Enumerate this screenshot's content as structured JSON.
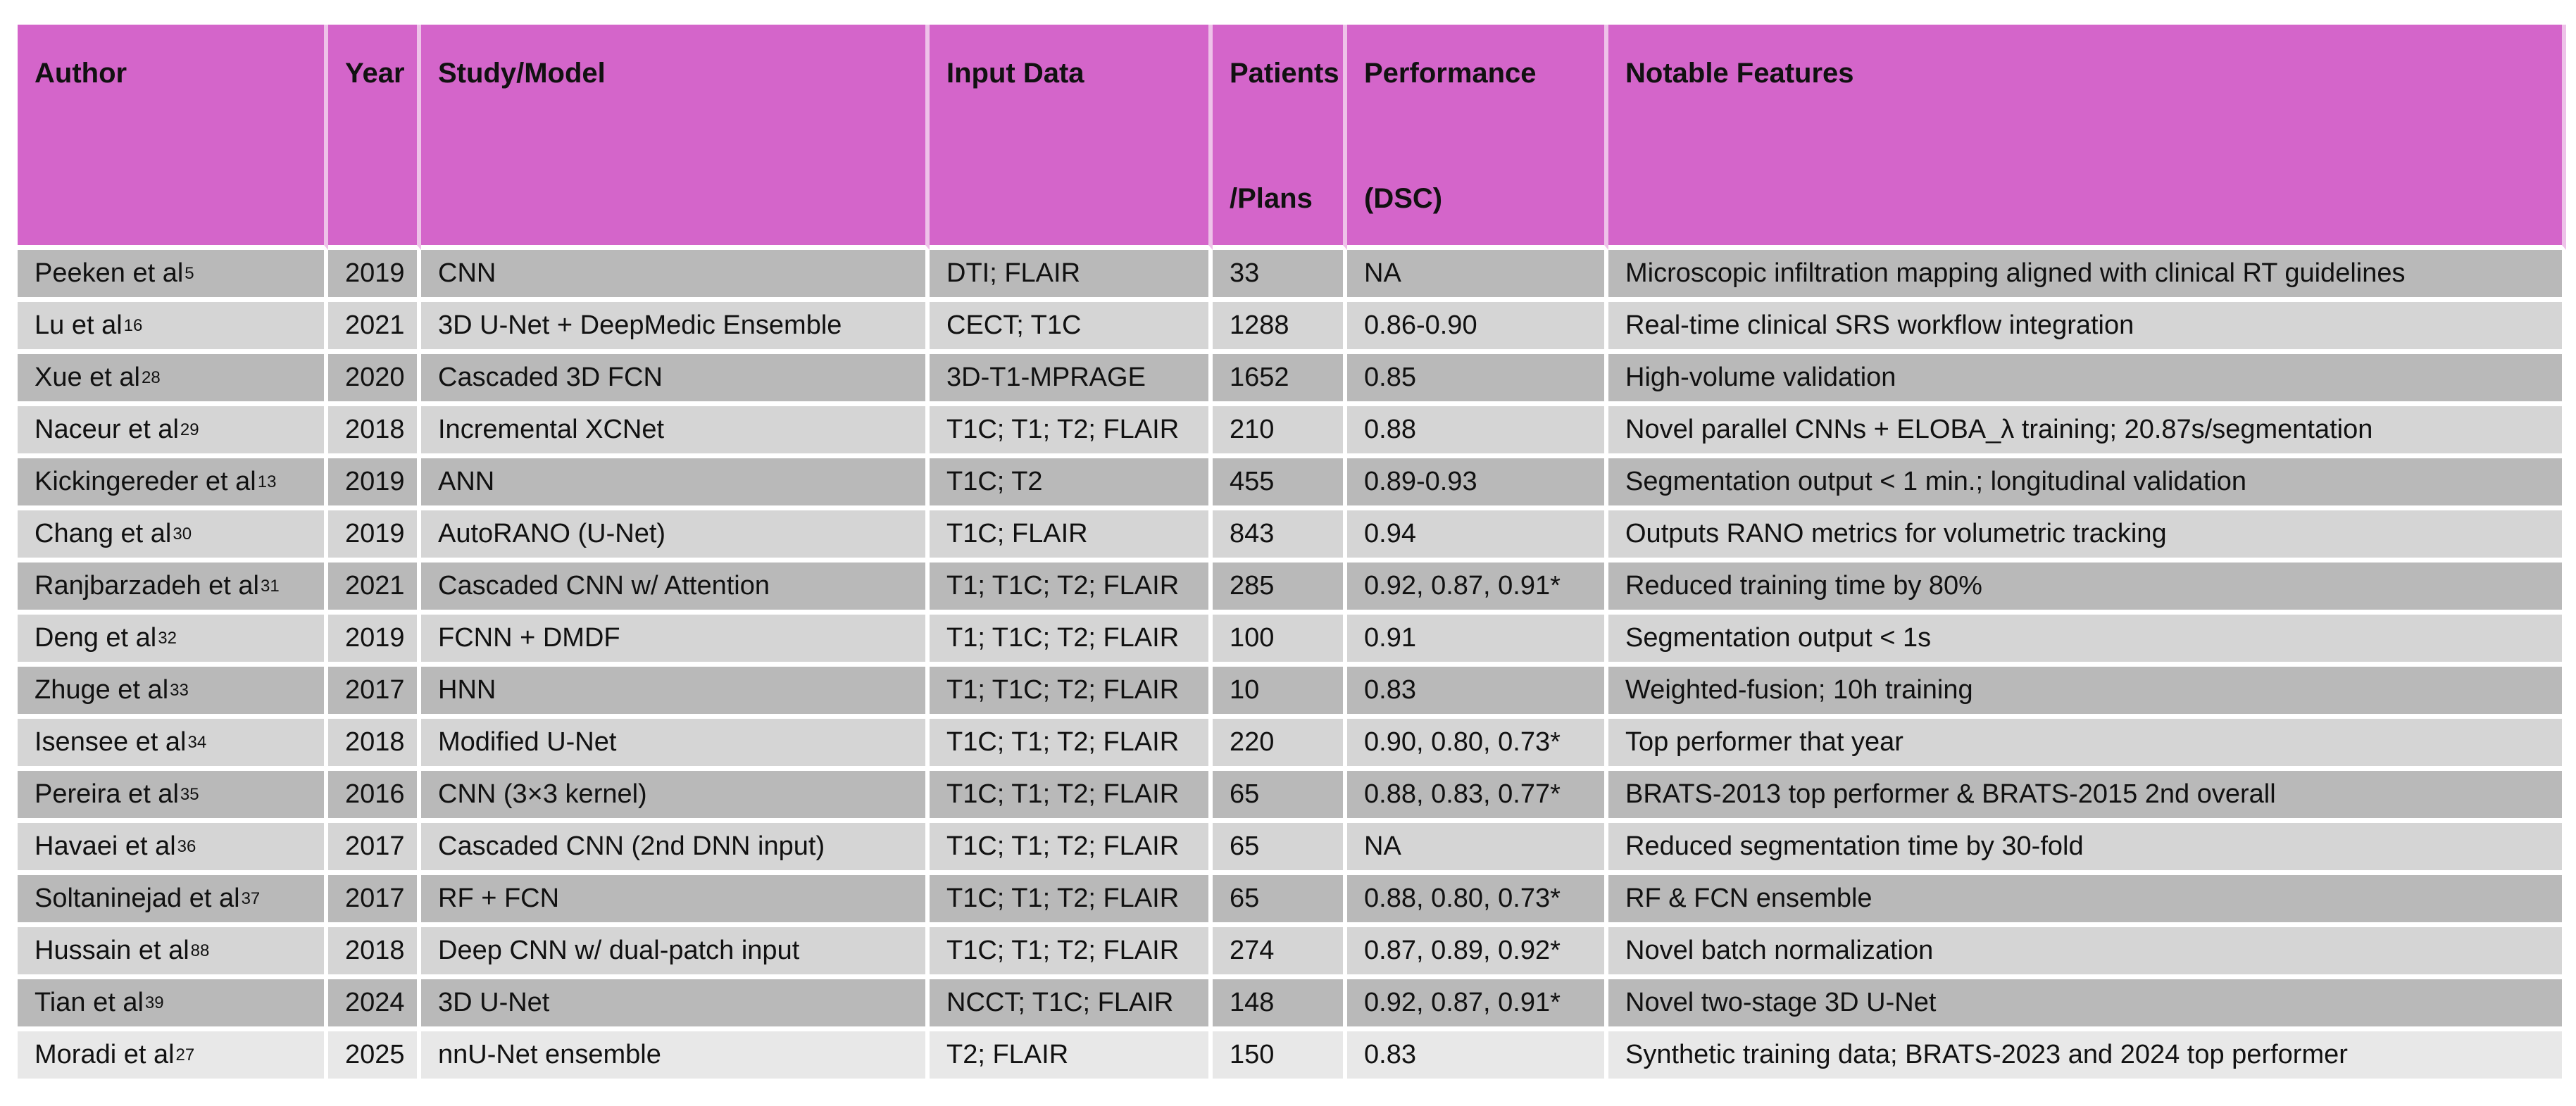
{
  "colors": {
    "header_bg": "#d465ca",
    "row_dark": "#b9b9b9",
    "row_light": "#d5d5d5",
    "row_lightest": "#e8e8e8",
    "grid_line": "#ffffff",
    "header_separator": "#eec2e9",
    "text": "#111111"
  },
  "header": {
    "author": "Author",
    "year": "Year",
    "study": "Study/Model",
    "input": "Input Data",
    "patients_line1": "Patients",
    "patients_line2": "/Plans",
    "performance_line1": "Performance",
    "performance_line2": "(DSC)",
    "features": "Notable Features"
  },
  "rows": [
    {
      "author": "Peeken et al",
      "ref": "5",
      "year": "2019",
      "study": "CNN",
      "input": "DTI; FLAIR",
      "patients": "33",
      "performance": "NA",
      "features": "Microscopic infiltration mapping aligned with clinical RT guidelines"
    },
    {
      "author": "Lu et al",
      "ref": "16",
      "year": "2021",
      "study": "3D U-Net + DeepMedic Ensemble",
      "input": "CECT; T1C",
      "patients": "1288",
      "performance": "0.86-0.90",
      "features": "Real-time clinical SRS workflow integration"
    },
    {
      "author": "Xue et al",
      "ref": "28",
      "year": "2020",
      "study": "Cascaded 3D FCN",
      "input": "3D-T1-MPRAGE",
      "patients": "1652",
      "performance": "0.85",
      "features": "High-volume validation"
    },
    {
      "author": "Naceur et al",
      "ref": "29",
      "year": "2018",
      "study": "Incremental XCNet",
      "input": "T1C; T1; T2; FLAIR",
      "patients": "210",
      "performance": "0.88",
      "features": "Novel parallel CNNs + ELOBA_λ training; 20.87s/segmentation"
    },
    {
      "author": "Kickingereder et al",
      "ref": "13",
      "year": "2019",
      "study": "ANN",
      "input": "T1C; T2",
      "patients": "455",
      "performance": "0.89-0.93",
      "features": "Segmentation output < 1 min.; longitudinal validation"
    },
    {
      "author": "Chang et al",
      "ref": "30",
      "year": "2019",
      "study": "AutoRANO (U-Net)",
      "input": "T1C; FLAIR",
      "patients": "843",
      "performance": "0.94",
      "features": "Outputs RANO metrics for volumetric tracking"
    },
    {
      "author": "Ranjbarzadeh et al",
      "ref": "31",
      "year": "2021",
      "study": "Cascaded CNN w/ Attention",
      "input": "T1; T1C; T2; FLAIR",
      "patients": "285",
      "performance": "0.92, 0.87, 0.91*",
      "features": "Reduced training time by 80%"
    },
    {
      "author": "Deng et al",
      "ref": "32",
      "year": "2019",
      "study": "FCNN + DMDF",
      "input": "T1; T1C; T2; FLAIR",
      "patients": "100",
      "performance": "0.91",
      "features": "Segmentation output < 1s"
    },
    {
      "author": "Zhuge et al",
      "ref": "33",
      "year": "2017",
      "study": "HNN",
      "input": "T1; T1C; T2; FLAIR",
      "patients": "10",
      "performance": "0.83",
      "features": "Weighted-fusion; 10h training"
    },
    {
      "author": "Isensee et al",
      "ref": "34",
      "year": "2018",
      "study": "Modified U-Net",
      "input": "T1C; T1; T2; FLAIR",
      "patients": "220",
      "performance": "0.90, 0.80, 0.73*",
      "features": "Top performer that year"
    },
    {
      "author": "Pereira et al",
      "ref": "35",
      "year": "2016",
      "study": "CNN (3×3 kernel)",
      "input": "T1C; T1; T2; FLAIR",
      "patients": "65",
      "performance": "0.88, 0.83, 0.77*",
      "features": "BRATS-2013 top performer & BRATS-2015 2nd overall"
    },
    {
      "author": "Havaei et al",
      "ref": "36",
      "year": "2017",
      "study": "Cascaded CNN (2nd DNN input)",
      "input": "T1C; T1; T2; FLAIR",
      "patients": "65",
      "performance": "NA",
      "features": "Reduced segmentation time by 30-fold"
    },
    {
      "author": "Soltaninejad et al",
      "ref": "37",
      "year": "2017",
      "study": "RF + FCN",
      "input": "T1C; T1; T2; FLAIR",
      "patients": "65",
      "performance": "0.88, 0.80, 0.73*",
      "features": "RF & FCN ensemble"
    },
    {
      "author": "Hussain et al",
      "ref": "88",
      "year": "2018",
      "study": "Deep CNN w/ dual-patch input",
      "input": "T1C; T1; T2; FLAIR",
      "patients": "274",
      "performance": "0.87, 0.89, 0.92*",
      "features": "Novel batch normalization"
    },
    {
      "author": "Tian et al",
      "ref": "39",
      "year": "2024",
      "study": "3D U-Net",
      "input": "NCCT; T1C; FLAIR",
      "patients": "148",
      "performance": "0.92, 0.87, 0.91*",
      "features": "Novel two-stage 3D U-Net"
    },
    {
      "author": "Moradi et al",
      "ref": "27",
      "year": "2025",
      "study": "nnU-Net ensemble",
      "input": "T2; FLAIR",
      "patients": "150",
      "performance": "0.83",
      "features": "Synthetic training data; BRATS-2023 and 2024 top performer"
    }
  ]
}
